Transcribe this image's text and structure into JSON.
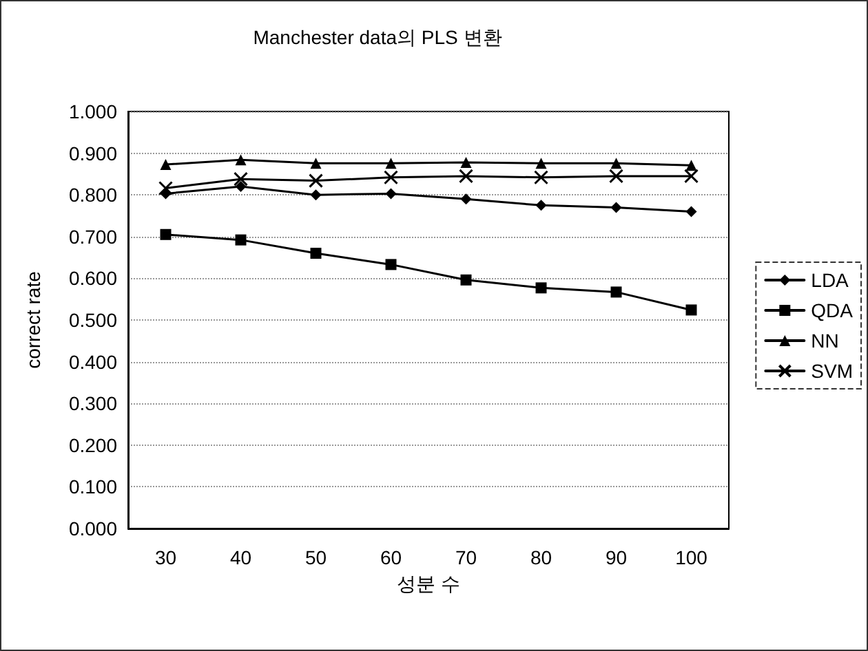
{
  "chart_data": {
    "type": "line",
    "title": "Manchester data의 PLS 변환",
    "xlabel": "성분 수",
    "ylabel": "correct rate",
    "categories": [
      "30",
      "40",
      "50",
      "60",
      "70",
      "80",
      "90",
      "100"
    ],
    "series": [
      {
        "name": "LDA",
        "color": "#000000",
        "marker": "diamond",
        "values": [
          0.803,
          0.82,
          0.8,
          0.803,
          0.79,
          0.775,
          0.77,
          0.76
        ]
      },
      {
        "name": "QDA",
        "color": "#000000",
        "marker": "square",
        "values": [
          0.705,
          0.692,
          0.66,
          0.633,
          0.596,
          0.577,
          0.567,
          0.524
        ]
      },
      {
        "name": "NN",
        "color": "#000000",
        "marker": "triangle",
        "values": [
          0.873,
          0.884,
          0.876,
          0.876,
          0.878,
          0.876,
          0.876,
          0.871
        ]
      },
      {
        "name": "SVM",
        "color": "#000000",
        "marker": "cross",
        "values": [
          0.816,
          0.838,
          0.834,
          0.842,
          0.845,
          0.842,
          0.845,
          0.845
        ]
      }
    ],
    "ylim": [
      0,
      1
    ],
    "yticks": [
      {
        "value": 0,
        "label": "0.000"
      },
      {
        "value": 0.1,
        "label": "0.100"
      },
      {
        "value": 0.2,
        "label": "0.200"
      },
      {
        "value": 0.3,
        "label": "0.300"
      },
      {
        "value": 0.4,
        "label": "0.400"
      },
      {
        "value": 0.5,
        "label": "0.500"
      },
      {
        "value": 0.6,
        "label": "0.600"
      },
      {
        "value": 0.7,
        "label": "0.700"
      },
      {
        "value": 0.8,
        "label": "0.800"
      },
      {
        "value": 0.9,
        "label": "0.900"
      },
      {
        "value": 1,
        "label": "1.000"
      }
    ],
    "grid": "y",
    "legend": "right",
    "line_style": "solid"
  }
}
